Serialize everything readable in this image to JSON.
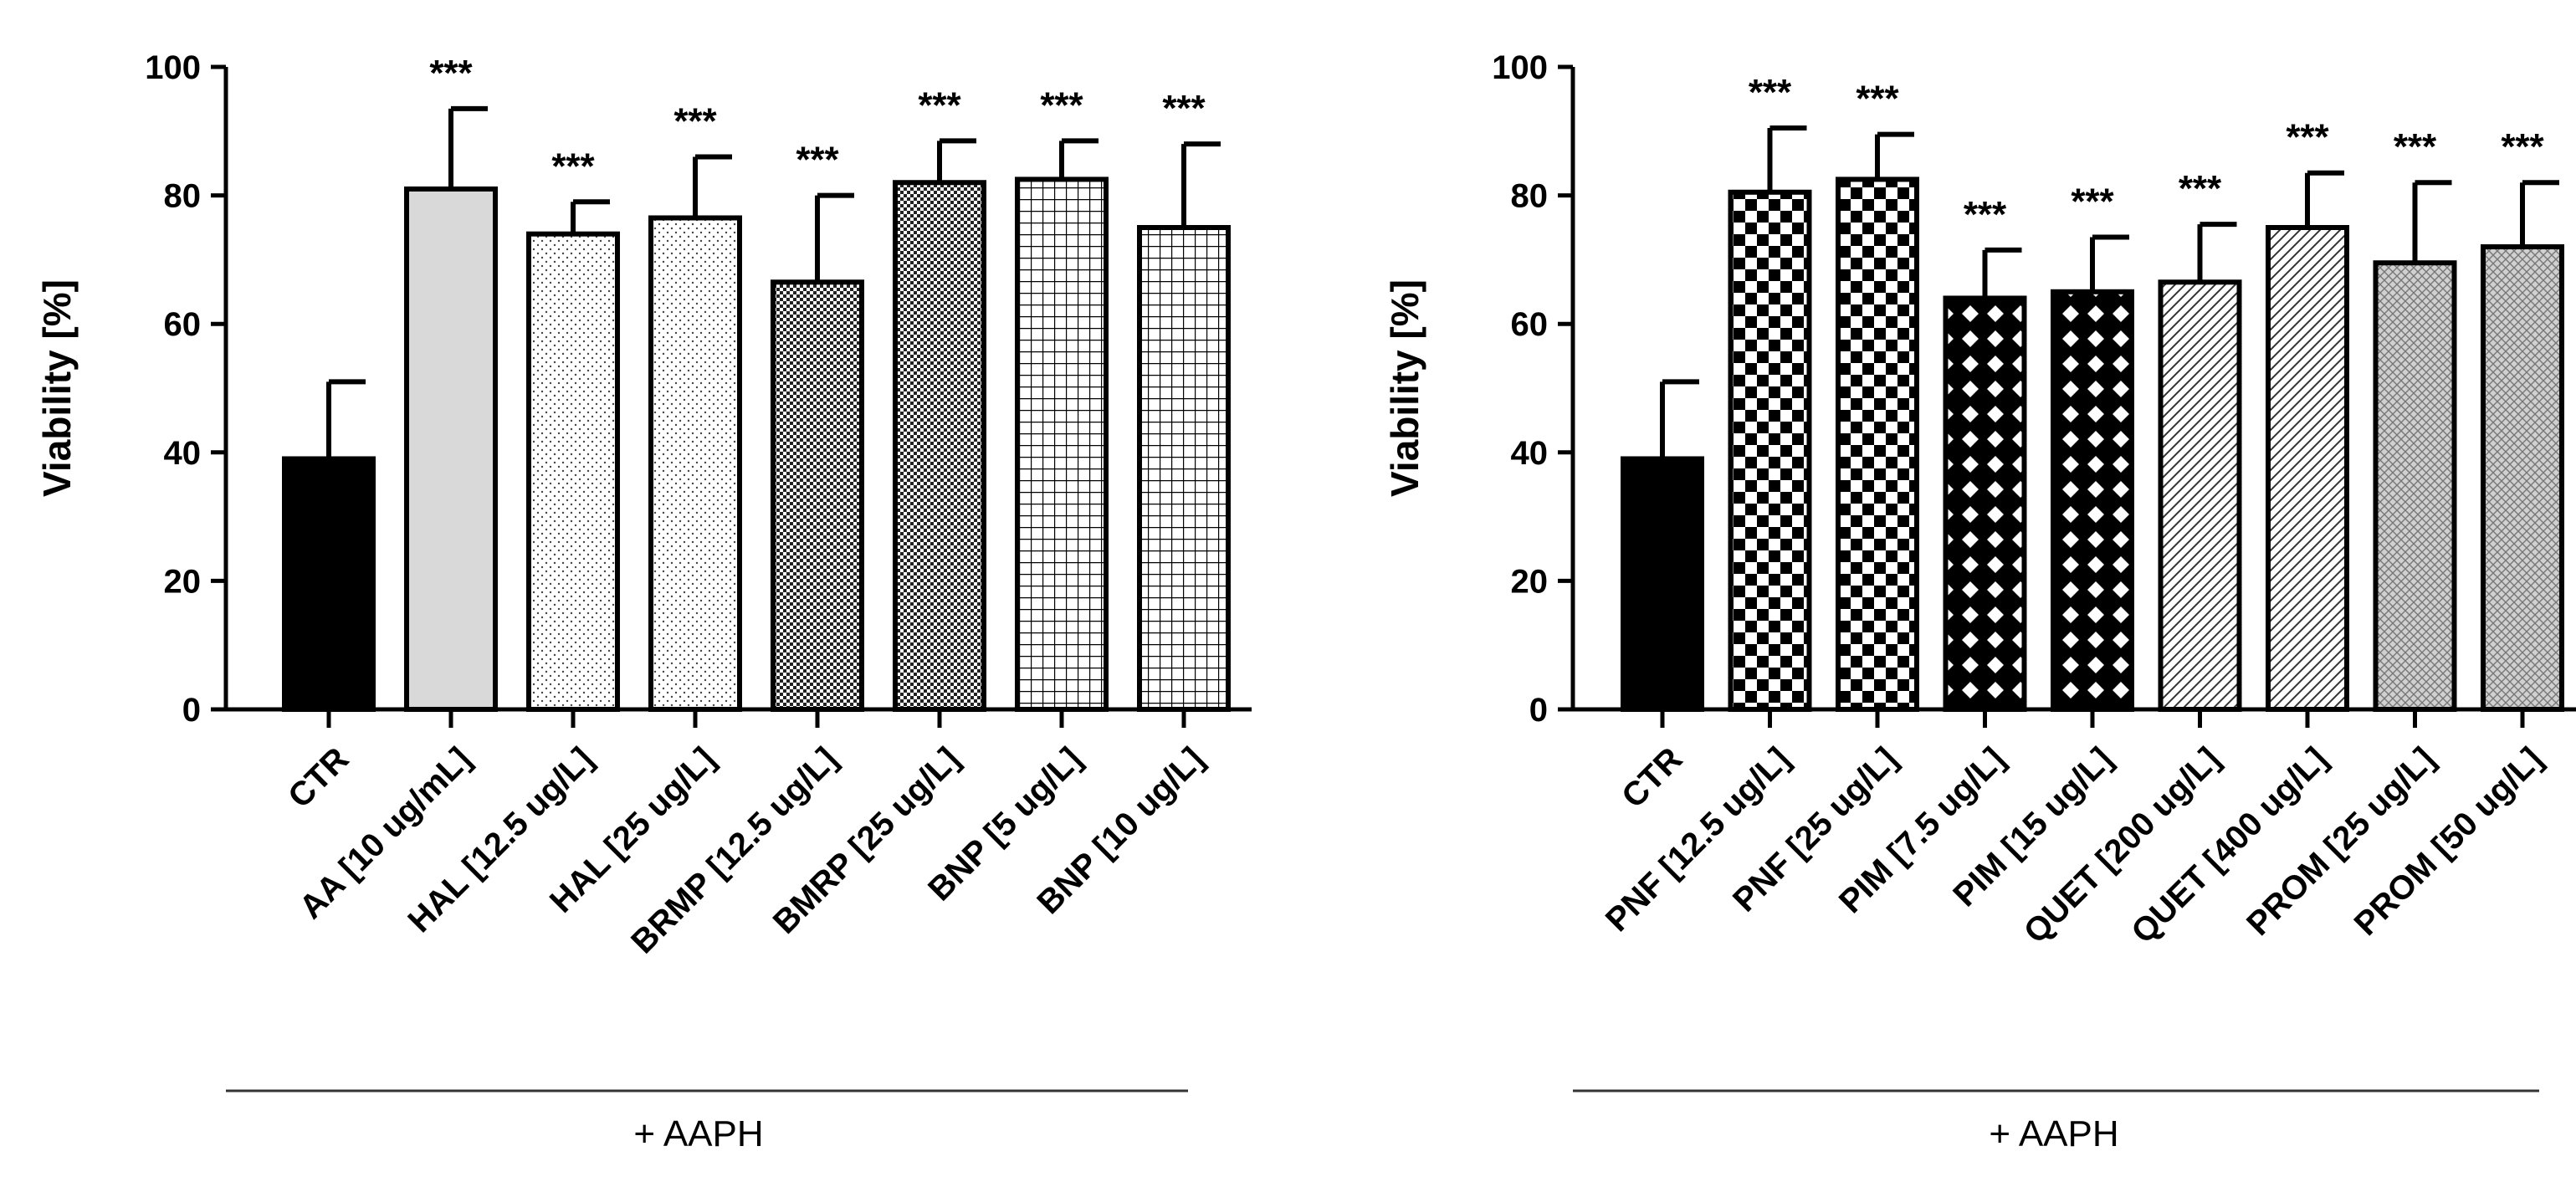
{
  "chart_data": [
    {
      "type": "bar",
      "ylabel": "Viability [%]",
      "ylim": [
        0,
        100
      ],
      "yticks": [
        0,
        20,
        40,
        60,
        80,
        100
      ],
      "group_label": "+ AAPH",
      "categories": [
        "CTR",
        "AA [10 ug/mL]",
        "HAL [12.5 ug/L]",
        "HAL [25 ug/L]",
        "BRMP [12.5 ug/L]",
        "BMRP [25 ug/L]",
        "BNP [5 ug/L]",
        "BNP [10 ug/L]"
      ],
      "values": [
        39,
        81,
        74,
        76.5,
        66.5,
        82,
        82.5,
        75
      ],
      "errors": [
        12,
        12.5,
        5,
        9.5,
        13.5,
        6.5,
        6,
        13
      ],
      "significance": [
        "",
        "***",
        "***",
        "***",
        "***",
        "***",
        "***",
        "***"
      ],
      "fills": [
        "solid-black",
        "light-grey",
        "fine-dots",
        "fine-dots",
        "dense-checker",
        "dense-checker",
        "grid",
        "grid"
      ]
    },
    {
      "type": "bar",
      "ylabel": "Viability [%]",
      "ylim": [
        0,
        100
      ],
      "yticks": [
        0,
        20,
        40,
        60,
        80,
        100
      ],
      "group_label": "+ AAPH",
      "categories": [
        "CTR",
        "PNF [12.5 ug/L]",
        "PNF [25 ug/L]",
        "PIM [7.5 ug/L]",
        "PIM [15 ug/L]",
        "QUET [200 ug/L]",
        "QUET [400 ug/L]",
        "PROM [25 ug/L]",
        "PROM [50 ug/L]"
      ],
      "values": [
        39,
        80.5,
        82.5,
        64,
        65,
        66.5,
        75,
        69.5,
        72
      ],
      "errors": [
        12,
        10,
        7,
        7.5,
        8.5,
        9,
        8.5,
        12.5,
        10
      ],
      "significance": [
        "",
        "***",
        "***",
        "***",
        "***",
        "***",
        "***",
        "***",
        "***"
      ],
      "fills": [
        "solid-black",
        "checker",
        "checker",
        "diamond",
        "diamond",
        "diagonal",
        "diagonal",
        "grey-texture",
        "grey-texture"
      ]
    }
  ]
}
